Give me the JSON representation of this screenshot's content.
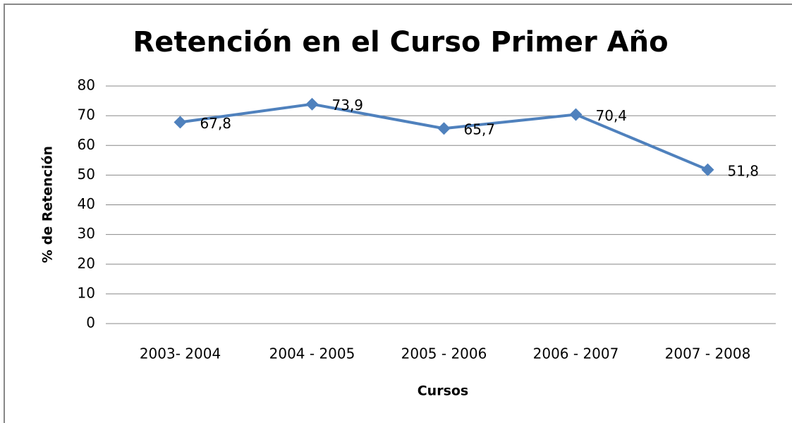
{
  "chart_data": {
    "type": "line",
    "title": "Retención en el Curso Primer Año",
    "x_label": "Cursos",
    "y_label": "% de Retención",
    "categories": [
      "2003- 2004",
      "2004 - 2005",
      "2005 - 2006",
      "2006 - 2007",
      "2007 - 2008"
    ],
    "values": [
      67.8,
      73.9,
      65.7,
      70.4,
      51.8
    ],
    "value_labels": [
      "67,8",
      "73,9",
      "65,7",
      "70,4",
      "51,8"
    ],
    "color": "#4f81bd",
    "ylim": [
      0,
      80
    ],
    "yticks": [
      0,
      10,
      20,
      30,
      40,
      50,
      60,
      70,
      80
    ],
    "grid": true
  }
}
